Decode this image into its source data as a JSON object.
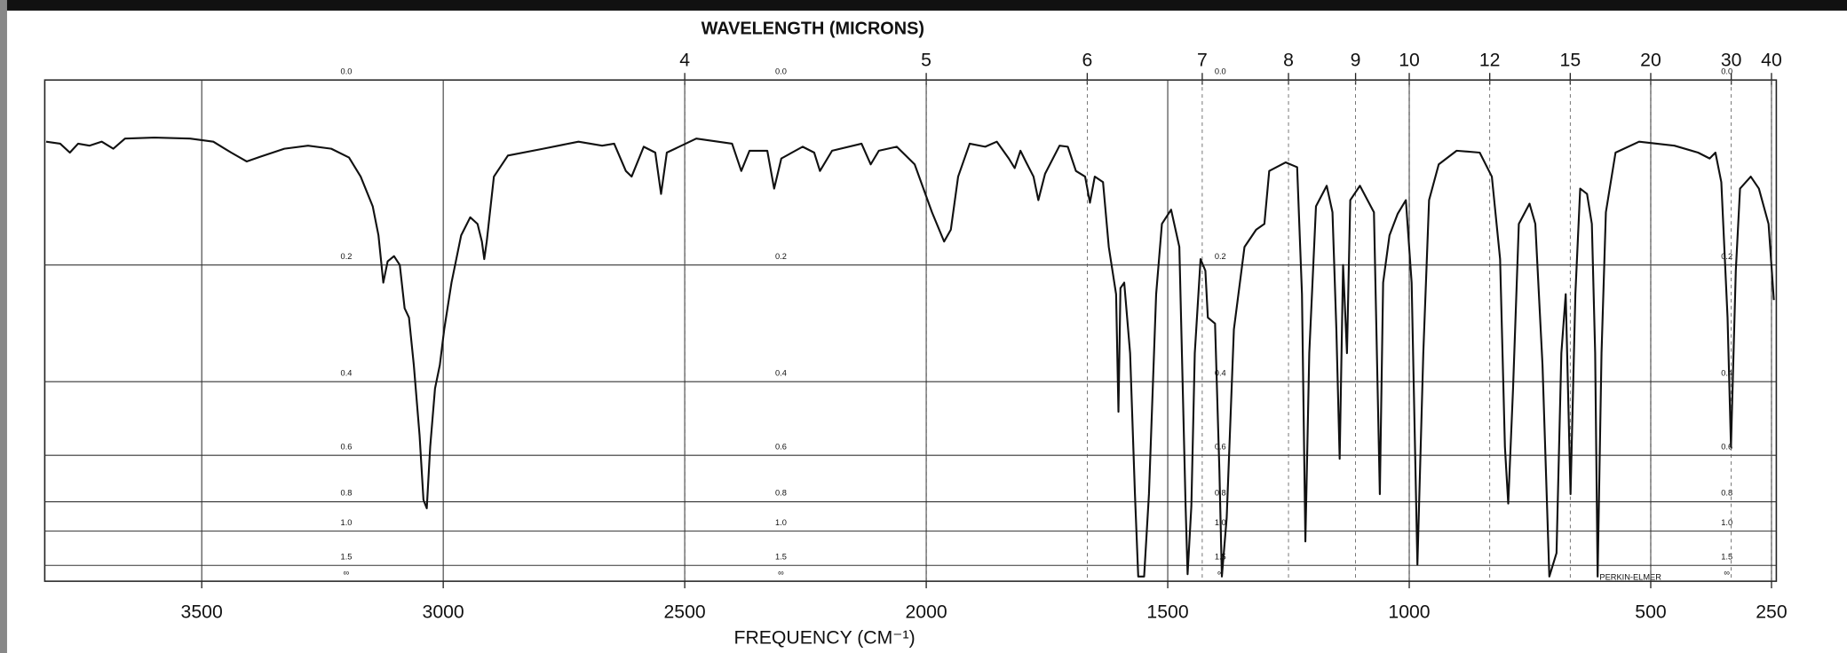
{
  "chart_data": {
    "type": "line",
    "x2label": "WAVELENGTH (MICRONS)",
    "xlabel": "FREQUENCY (CM⁻¹)",
    "annotation": "PERKIN-ELMER",
    "color": "#111111",
    "xlim": [
      3825,
      240
    ],
    "xticks": [
      3500,
      3000,
      2500,
      2000,
      1500,
      1000,
      500,
      250
    ],
    "x2ticks": [
      4,
      5,
      6,
      7,
      8,
      9,
      10,
      12,
      15,
      20,
      30,
      40
    ],
    "yscale": "transmittance",
    "ylim": [
      0,
      null
    ],
    "yticks": [
      {
        "value": 0,
        "label": "0.0"
      },
      0.2,
      0.4,
      0.6,
      0.8,
      {
        "value": 1,
        "label": "1.0"
      },
      1.5,
      {
        "value": null,
        "label": "∞"
      }
    ],
    "grid": true,
    "x": [
      3822,
      3793,
      3773,
      3756,
      3732,
      3707,
      3683,
      3659,
      3598,
      3524,
      3476,
      3439,
      3407,
      3378,
      3329,
      3280,
      3232,
      3195,
      3171,
      3146,
      3134,
      3124,
      3115,
      3102,
      3090,
      3080,
      3071,
      3061,
      3049,
      3041,
      3034,
      3027,
      3017,
      3007,
      2998,
      2983,
      2963,
      2944,
      2929,
      2920,
      2915,
      2910,
      2895,
      2866,
      2793,
      2720,
      2671,
      2646,
      2622,
      2610,
      2585,
      2561,
      2549,
      2537,
      2476,
      2402,
      2383,
      2366,
      2329,
      2315,
      2300,
      2256,
      2232,
      2220,
      2195,
      2134,
      2115,
      2098,
      2061,
      2024,
      1988,
      1963,
      1949,
      1934,
      1910,
      1878,
      1854,
      1829,
      1817,
      1805,
      1793,
      1778,
      1768,
      1754,
      1724,
      1707,
      1690,
      1671,
      1661,
      1651,
      1634,
      1622,
      1607,
      1602,
      1598,
      1590,
      1578,
      1568,
      1561,
      1549,
      1539,
      1524,
      1512,
      1493,
      1476,
      1463,
      1459,
      1451,
      1444,
      1432,
      1422,
      1417,
      1402,
      1393,
      1388,
      1378,
      1363,
      1341,
      1317,
      1300,
      1290,
      1256,
      1232,
      1222,
      1215,
      1207,
      1193,
      1171,
      1159,
      1151,
      1144,
      1137,
      1129,
      1122,
      1102,
      1073,
      1061,
      1054,
      1041,
      1024,
      1007,
      995,
      983,
      971,
      959,
      939,
      902,
      854,
      829,
      812,
      802,
      795,
      785,
      773,
      751,
      739,
      724,
      710,
      695,
      685,
      676,
      666,
      656,
      646,
      632,
      622,
      615,
      610,
      602,
      593,
      573,
      524,
      451,
      402,
      378,
      366,
      354,
      341,
      334,
      324,
      315,
      293,
      276,
      256,
      245
    ],
    "values": [
      0.057,
      0.059,
      0.068,
      0.059,
      0.061,
      0.057,
      0.064,
      0.054,
      0.053,
      0.054,
      0.057,
      0.068,
      0.077,
      0.072,
      0.064,
      0.061,
      0.064,
      0.073,
      0.093,
      0.126,
      0.161,
      0.225,
      0.195,
      0.188,
      0.2,
      0.264,
      0.279,
      0.365,
      0.536,
      0.79,
      0.837,
      0.572,
      0.415,
      0.365,
      0.299,
      0.225,
      0.161,
      0.139,
      0.147,
      0.169,
      0.192,
      0.169,
      0.093,
      0.071,
      0.064,
      0.057,
      0.061,
      0.059,
      0.087,
      0.093,
      0.062,
      0.068,
      0.112,
      0.068,
      0.054,
      0.059,
      0.087,
      0.066,
      0.066,
      0.106,
      0.074,
      0.062,
      0.068,
      0.087,
      0.066,
      0.059,
      0.08,
      0.066,
      0.062,
      0.08,
      0.133,
      0.169,
      0.154,
      0.093,
      0.059,
      0.062,
      0.057,
      0.074,
      0.084,
      0.066,
      0.078,
      0.093,
      0.119,
      0.09,
      0.061,
      0.062,
      0.087,
      0.093,
      0.122,
      0.093,
      0.099,
      0.176,
      0.242,
      0.471,
      0.233,
      0.225,
      0.342,
      0.76,
      2.03,
      2.03,
      0.76,
      0.242,
      0.147,
      0.13,
      0.176,
      0.824,
      1.85,
      0.824,
      0.342,
      0.192,
      0.208,
      0.279,
      0.289,
      0.656,
      2.03,
      0.897,
      0.299,
      0.176,
      0.154,
      0.147,
      0.087,
      0.078,
      0.083,
      0.242,
      1.1,
      0.342,
      0.126,
      0.103,
      0.133,
      0.299,
      0.612,
      0.2,
      0.342,
      0.119,
      0.103,
      0.133,
      0.76,
      0.225,
      0.161,
      0.135,
      0.119,
      0.225,
      1.48,
      0.342,
      0.119,
      0.08,
      0.066,
      0.068,
      0.093,
      0.192,
      0.572,
      0.81,
      0.415,
      0.147,
      0.123,
      0.147,
      0.365,
      2.03,
      1.25,
      0.342,
      0.242,
      0.76,
      0.242,
      0.106,
      0.112,
      0.147,
      0.342,
      2.03,
      0.342,
      0.133,
      0.068,
      0.057,
      0.061,
      0.068,
      0.074,
      0.068,
      0.099,
      0.279,
      0.572,
      0.208,
      0.106,
      0.093,
      0.106,
      0.147,
      0.251
    ]
  }
}
